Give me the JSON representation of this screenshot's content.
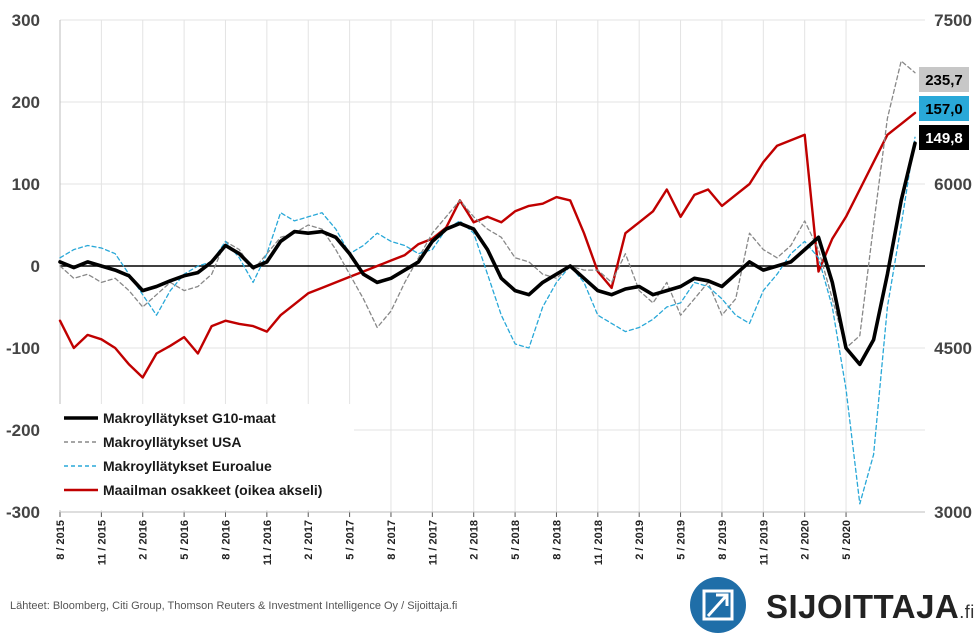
{
  "chart_data": {
    "type": "line",
    "title": "",
    "x_start": "8/2015",
    "x_end": "10/2020",
    "x_tick_labels": [
      "8 / 2015",
      "11 / 2015",
      "2 / 2016",
      "5 / 2016",
      "8 / 2016",
      "11 / 2016",
      "2 / 2017",
      "5 / 2017",
      "8 / 2017",
      "11 / 2017",
      "2 / 2018",
      "5 / 2018",
      "8 / 2018",
      "11 / 2018",
      "2 / 2019",
      "5 / 2019",
      "8 / 2019",
      "11 / 2019",
      "2 / 2020",
      "5 / 2020"
    ],
    "y_left": {
      "ylim": [
        -300,
        300
      ],
      "ticks": [
        "300",
        "200",
        "100",
        "0",
        "-100",
        "-200",
        "-300"
      ],
      "tick_values": [
        300,
        200,
        100,
        0,
        -100,
        -200,
        -300
      ]
    },
    "y_right": {
      "ylim": [
        3000,
        7500
      ],
      "ticks": [
        "7500",
        "6000",
        "4500",
        "3000"
      ],
      "tick_values": [
        7500,
        6000,
        4500,
        3000
      ]
    },
    "grid": true,
    "zero_line": true,
    "legend_position": "bottom-left",
    "series": [
      {
        "name": "Makroyllätykset G10-maat",
        "axis": "left",
        "color": "#000000",
        "style": "solid",
        "points": [
          [
            "2015-08",
            5
          ],
          [
            "2015-09",
            -2
          ],
          [
            "2015-10",
            5
          ],
          [
            "2015-11",
            0
          ],
          [
            "2015-12",
            -5
          ],
          [
            "2016-01",
            -12
          ],
          [
            "2016-02",
            -30
          ],
          [
            "2016-03",
            -25
          ],
          [
            "2016-04",
            -18
          ],
          [
            "2016-05",
            -12
          ],
          [
            "2016-06",
            -8
          ],
          [
            "2016-07",
            5
          ],
          [
            "2016-08",
            25
          ],
          [
            "2016-09",
            15
          ],
          [
            "2016-10",
            -2
          ],
          [
            "2016-11",
            5
          ],
          [
            "2016-12",
            30
          ],
          [
            "2017-01",
            42
          ],
          [
            "2017-02",
            40
          ],
          [
            "2017-03",
            42
          ],
          [
            "2017-04",
            35
          ],
          [
            "2017-05",
            15
          ],
          [
            "2017-06",
            -10
          ],
          [
            "2017-07",
            -20
          ],
          [
            "2017-08",
            -15
          ],
          [
            "2017-09",
            -5
          ],
          [
            "2017-10",
            5
          ],
          [
            "2017-11",
            30
          ],
          [
            "2017-12",
            45
          ],
          [
            "2018-01",
            52
          ],
          [
            "2018-02",
            45
          ],
          [
            "2018-03",
            20
          ],
          [
            "2018-04",
            -15
          ],
          [
            "2018-05",
            -30
          ],
          [
            "2018-06",
            -35
          ],
          [
            "2018-07",
            -20
          ],
          [
            "2018-08",
            -10
          ],
          [
            "2018-09",
            0
          ],
          [
            "2018-10",
            -15
          ],
          [
            "2018-11",
            -30
          ],
          [
            "2018-12",
            -35
          ],
          [
            "2019-01",
            -28
          ],
          [
            "2019-02",
            -25
          ],
          [
            "2019-03",
            -35
          ],
          [
            "2019-04",
            -30
          ],
          [
            "2019-05",
            -25
          ],
          [
            "2019-06",
            -15
          ],
          [
            "2019-07",
            -18
          ],
          [
            "2019-08",
            -25
          ],
          [
            "2019-09",
            -10
          ],
          [
            "2019-10",
            5
          ],
          [
            "2019-11",
            -5
          ],
          [
            "2019-12",
            0
          ],
          [
            "2020-01",
            5
          ],
          [
            "2020-02",
            20
          ],
          [
            "2020-03",
            35
          ],
          [
            "2020-04",
            -20
          ],
          [
            "2020-05",
            -100
          ],
          [
            "2020-06",
            -120
          ],
          [
            "2020-07",
            -90
          ],
          [
            "2020-08",
            -10
          ],
          [
            "2020-09",
            80
          ],
          [
            "2020-10",
            149.8
          ]
        ]
      },
      {
        "name": "Makroyllätykset USA",
        "axis": "left",
        "color": "#888888",
        "style": "dashed",
        "points": [
          [
            "2015-08",
            0
          ],
          [
            "2015-09",
            -15
          ],
          [
            "2015-10",
            -10
          ],
          [
            "2015-11",
            -20
          ],
          [
            "2015-12",
            -15
          ],
          [
            "2016-01",
            -30
          ],
          [
            "2016-02",
            -50
          ],
          [
            "2016-03",
            -35
          ],
          [
            "2016-04",
            -20
          ],
          [
            "2016-05",
            -30
          ],
          [
            "2016-06",
            -25
          ],
          [
            "2016-07",
            -10
          ],
          [
            "2016-08",
            30
          ],
          [
            "2016-09",
            20
          ],
          [
            "2016-10",
            -5
          ],
          [
            "2016-11",
            15
          ],
          [
            "2016-12",
            35
          ],
          [
            "2017-01",
            40
          ],
          [
            "2017-02",
            50
          ],
          [
            "2017-03",
            45
          ],
          [
            "2017-04",
            20
          ],
          [
            "2017-05",
            -10
          ],
          [
            "2017-06",
            -40
          ],
          [
            "2017-07",
            -75
          ],
          [
            "2017-08",
            -55
          ],
          [
            "2017-09",
            -20
          ],
          [
            "2017-10",
            10
          ],
          [
            "2017-11",
            40
          ],
          [
            "2017-12",
            60
          ],
          [
            "2018-01",
            80
          ],
          [
            "2018-02",
            60
          ],
          [
            "2018-03",
            45
          ],
          [
            "2018-04",
            35
          ],
          [
            "2018-05",
            10
          ],
          [
            "2018-06",
            5
          ],
          [
            "2018-07",
            -10
          ],
          [
            "2018-08",
            -15
          ],
          [
            "2018-09",
            0
          ],
          [
            "2018-10",
            -5
          ],
          [
            "2018-11",
            -5
          ],
          [
            "2018-12",
            -20
          ],
          [
            "2019-01",
            15
          ],
          [
            "2019-02",
            -30
          ],
          [
            "2019-03",
            -45
          ],
          [
            "2019-04",
            -20
          ],
          [
            "2019-05",
            -60
          ],
          [
            "2019-06",
            -40
          ],
          [
            "2019-07",
            -20
          ],
          [
            "2019-08",
            -60
          ],
          [
            "2019-09",
            -40
          ],
          [
            "2019-10",
            40
          ],
          [
            "2019-11",
            20
          ],
          [
            "2019-12",
            10
          ],
          [
            "2020-01",
            25
          ],
          [
            "2020-02",
            55
          ],
          [
            "2020-03",
            20
          ],
          [
            "2020-04",
            -40
          ],
          [
            "2020-05",
            -100
          ],
          [
            "2020-06",
            -85
          ],
          [
            "2020-07",
            50
          ],
          [
            "2020-08",
            180
          ],
          [
            "2020-09",
            250
          ],
          [
            "2020-10",
            235.7
          ]
        ]
      },
      {
        "name": "Makroyllätykset Euroalue",
        "axis": "left",
        "color": "#29a8d8",
        "style": "dashed",
        "points": [
          [
            "2015-08",
            10
          ],
          [
            "2015-09",
            20
          ],
          [
            "2015-10",
            25
          ],
          [
            "2015-11",
            22
          ],
          [
            "2015-12",
            15
          ],
          [
            "2016-01",
            -10
          ],
          [
            "2016-02",
            -35
          ],
          [
            "2016-03",
            -60
          ],
          [
            "2016-04",
            -30
          ],
          [
            "2016-05",
            -10
          ],
          [
            "2016-06",
            0
          ],
          [
            "2016-07",
            5
          ],
          [
            "2016-08",
            30
          ],
          [
            "2016-09",
            10
          ],
          [
            "2016-10",
            -20
          ],
          [
            "2016-11",
            15
          ],
          [
            "2016-12",
            65
          ],
          [
            "2017-01",
            55
          ],
          [
            "2017-02",
            60
          ],
          [
            "2017-03",
            65
          ],
          [
            "2017-04",
            45
          ],
          [
            "2017-05",
            15
          ],
          [
            "2017-06",
            25
          ],
          [
            "2017-07",
            40
          ],
          [
            "2017-08",
            30
          ],
          [
            "2017-09",
            25
          ],
          [
            "2017-10",
            15
          ],
          [
            "2017-11",
            20
          ],
          [
            "2017-12",
            45
          ],
          [
            "2018-01",
            55
          ],
          [
            "2018-02",
            40
          ],
          [
            "2018-03",
            -10
          ],
          [
            "2018-04",
            -60
          ],
          [
            "2018-05",
            -95
          ],
          [
            "2018-06",
            -100
          ],
          [
            "2018-07",
            -50
          ],
          [
            "2018-08",
            -20
          ],
          [
            "2018-09",
            0
          ],
          [
            "2018-10",
            -20
          ],
          [
            "2018-11",
            -60
          ],
          [
            "2018-12",
            -70
          ],
          [
            "2019-01",
            -80
          ],
          [
            "2019-02",
            -75
          ],
          [
            "2019-03",
            -65
          ],
          [
            "2019-04",
            -50
          ],
          [
            "2019-05",
            -45
          ],
          [
            "2019-06",
            -20
          ],
          [
            "2019-07",
            -25
          ],
          [
            "2019-08",
            -40
          ],
          [
            "2019-09",
            -60
          ],
          [
            "2019-10",
            -70
          ],
          [
            "2019-11",
            -30
          ],
          [
            "2019-12",
            -10
          ],
          [
            "2020-01",
            15
          ],
          [
            "2020-02",
            30
          ],
          [
            "2020-03",
            10
          ],
          [
            "2020-04",
            -50
          ],
          [
            "2020-05",
            -150
          ],
          [
            "2020-06",
            -290
          ],
          [
            "2020-07",
            -230
          ],
          [
            "2020-08",
            -50
          ],
          [
            "2020-09",
            50
          ],
          [
            "2020-10",
            157.0
          ]
        ]
      },
      {
        "name": "Maailman osakkeet (oikea akseli)",
        "axis": "right",
        "color": "#c00000",
        "style": "solid",
        "points": [
          [
            "2015-08",
            4750
          ],
          [
            "2015-09",
            4500
          ],
          [
            "2015-10",
            4620
          ],
          [
            "2015-11",
            4580
          ],
          [
            "2015-12",
            4500
          ],
          [
            "2016-01",
            4350
          ],
          [
            "2016-02",
            4230
          ],
          [
            "2016-03",
            4450
          ],
          [
            "2016-04",
            4520
          ],
          [
            "2016-05",
            4600
          ],
          [
            "2016-06",
            4450
          ],
          [
            "2016-07",
            4700
          ],
          [
            "2016-08",
            4750
          ],
          [
            "2016-09",
            4720
          ],
          [
            "2016-10",
            4700
          ],
          [
            "2016-11",
            4650
          ],
          [
            "2016-12",
            4800
          ],
          [
            "2017-01",
            4900
          ],
          [
            "2017-02",
            5000
          ],
          [
            "2017-03",
            5050
          ],
          [
            "2017-04",
            5100
          ],
          [
            "2017-05",
            5150
          ],
          [
            "2017-06",
            5200
          ],
          [
            "2017-07",
            5250
          ],
          [
            "2017-08",
            5300
          ],
          [
            "2017-09",
            5350
          ],
          [
            "2017-10",
            5450
          ],
          [
            "2017-11",
            5500
          ],
          [
            "2017-12",
            5600
          ],
          [
            "2018-01",
            5850
          ],
          [
            "2018-02",
            5650
          ],
          [
            "2018-03",
            5700
          ],
          [
            "2018-04",
            5650
          ],
          [
            "2018-05",
            5750
          ],
          [
            "2018-06",
            5800
          ],
          [
            "2018-07",
            5820
          ],
          [
            "2018-08",
            5880
          ],
          [
            "2018-09",
            5850
          ],
          [
            "2018-10",
            5550
          ],
          [
            "2018-11",
            5200
          ],
          [
            "2018-12",
            5050
          ],
          [
            "2019-01",
            5550
          ],
          [
            "2019-02",
            5650
          ],
          [
            "2019-03",
            5750
          ],
          [
            "2019-04",
            5950
          ],
          [
            "2019-05",
            5700
          ],
          [
            "2019-06",
            5900
          ],
          [
            "2019-07",
            5950
          ],
          [
            "2019-08",
            5800
          ],
          [
            "2019-09",
            5900
          ],
          [
            "2019-10",
            6000
          ],
          [
            "2019-11",
            6200
          ],
          [
            "2019-12",
            6350
          ],
          [
            "2020-01",
            6400
          ],
          [
            "2020-02",
            6450
          ],
          [
            "2020-03",
            5200
          ],
          [
            "2020-04",
            5500
          ],
          [
            "2020-05",
            5700
          ],
          [
            "2020-06",
            5950
          ],
          [
            "2020-07",
            6200
          ],
          [
            "2020-08",
            6450
          ],
          [
            "2020-09",
            6550
          ],
          [
            "2020-10",
            6650
          ]
        ]
      }
    ],
    "end_labels": [
      {
        "text": "235,7",
        "value": 235.7,
        "bg": "#c7c7c7",
        "fg": "#000000"
      },
      {
        "text": "157,0",
        "value": 157.0,
        "bg": "#29a8d8",
        "fg": "#000000"
      },
      {
        "text": "149,8",
        "value": 149.8,
        "bg": "#000000",
        "fg": "#ffffff"
      }
    ]
  },
  "footer": {
    "source": "Lähteet: Bloomberg, Citi Group, Thomson Reuters & Investment Intelligence Oy / Sijoittaja.fi",
    "logo_text": "SIJOITTAJA",
    "logo_suffix": ".fi",
    "logo_icon": "arrow-up-right-icon",
    "logo_color": "#1f6ea8"
  }
}
